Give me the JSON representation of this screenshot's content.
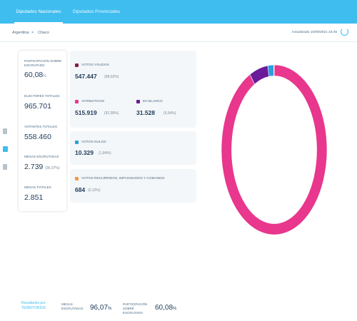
{
  "tabs": [
    {
      "label": "Diputados Nacionales",
      "active": true
    },
    {
      "label": "Diputados Provinciales",
      "active": false
    }
  ],
  "breadcrumb": {
    "country": "Argentina",
    "separator": ">",
    "province": "Chaco"
  },
  "updated": "Actualizado 10/09/2021 23:45",
  "stats": {
    "participation_label": "PARTICIPACIÓN SOBRE ESCRUTADO",
    "participation_value": "60,08",
    "participation_unit": "%",
    "electors_label": "ELECTORES TOTALES",
    "electors_value": "965.701",
    "voters_label": "VOTANTES TOTALES",
    "voters_value": "558.460",
    "tables_counted_label": "MESAS ESCRUTADAS",
    "tables_counted_value": "2.739",
    "tables_counted_pct": "(96,07%)",
    "tables_total_label": "MESAS TOTALES",
    "tables_total_value": "2.851"
  },
  "categories": {
    "valid": {
      "label": "VOTOS VÁLIDOS",
      "value": "547.447",
      "pct": "(98,02%)",
      "color": "#8a1e45"
    },
    "affirmative": {
      "label": "AFIRMATIVOS",
      "value": "515.919",
      "pct": "(92,38%)",
      "color": "#e8378d"
    },
    "blank": {
      "label": "EN BLANCO",
      "value": "31.528",
      "pct": "(5,64%)",
      "color": "#6a1b9a"
    },
    "null": {
      "label": "VOTOS NULOS",
      "value": "10.329",
      "pct": "(1,84%)",
      "color": "#2a9fe0"
    },
    "appealed": {
      "label": "VOTOS RECURRIDOS, IMPUGNADOS Y COMANDO",
      "value": "684",
      "pct": "(0,12%)",
      "color": "#f2994a"
    }
  },
  "chart_data": {
    "type": "pie",
    "categories": [
      "Afirmativos",
      "En blanco",
      "Votos nulos",
      "Votos recurridos, impugnados y comando"
    ],
    "values": [
      92.38,
      5.64,
      1.84,
      0.12
    ],
    "colors": [
      "#e8378d",
      "#6a1b9a",
      "#2a9fe0",
      "#f2994a"
    ],
    "donut": true
  },
  "footer": {
    "link": "Resultados por TERRITORIOS",
    "tables_label": "MESAS ESCRUTADAS",
    "tables_value": "96,07",
    "tables_unit": "%",
    "participation_label": "PARTICIPACIÓN SOBRE ESCRUTADO",
    "participation_value": "60,08",
    "participation_unit": "%"
  }
}
